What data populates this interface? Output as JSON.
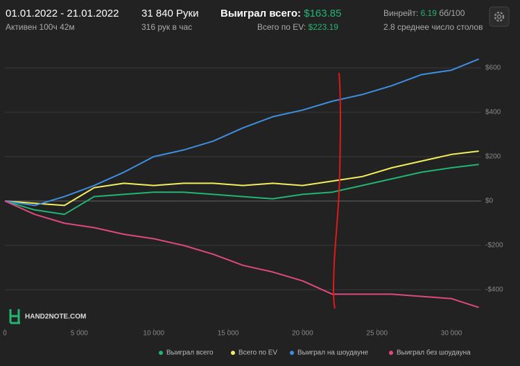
{
  "header": {
    "date_range": "01.01.2022 - 21.01.2022",
    "active": "Активен 100ч 42м",
    "hands": "31 840 Руки",
    "hands_per_hour": "316 рук в час",
    "won_label": "Выиграл всего:",
    "won_value": "$163.85",
    "ev_label": "Всего по EV:",
    "ev_value": "$223.19",
    "winrate_label": "Винрейт:",
    "winrate_value": "6.19",
    "winrate_unit": "бб/100",
    "avg_tables": "2.8 среднее число столов"
  },
  "logo": "HAND2NOTE.COM",
  "chart_data": {
    "type": "line",
    "x": [
      0,
      2000,
      4000,
      6000,
      8000,
      10000,
      12000,
      14000,
      16000,
      18000,
      20000,
      22000,
      24000,
      26000,
      28000,
      30000,
      31840
    ],
    "series": [
      {
        "name": "Выиграл всего",
        "color": "#22b573",
        "values": [
          0,
          -40,
          -60,
          20,
          30,
          40,
          40,
          30,
          20,
          10,
          30,
          40,
          70,
          100,
          130,
          150,
          165
        ]
      },
      {
        "name": "Всего по EV",
        "color": "#f3ee5e",
        "values": [
          0,
          -10,
          -20,
          60,
          80,
          70,
          80,
          80,
          70,
          80,
          70,
          90,
          110,
          150,
          180,
          210,
          225
        ]
      },
      {
        "name": "Выиграл на шоудауне",
        "color": "#3f8fe0",
        "values": [
          0,
          -20,
          20,
          70,
          130,
          200,
          230,
          270,
          330,
          380,
          410,
          450,
          480,
          520,
          570,
          590,
          640
        ]
      },
      {
        "name": "Выиграл без шоудауна",
        "color": "#df4a7d",
        "values": [
          0,
          -60,
          -100,
          -120,
          -150,
          -170,
          -200,
          -240,
          -290,
          -320,
          -360,
          -420,
          -420,
          -420,
          -430,
          -440,
          -480
        ]
      }
    ],
    "xlim": [
      0,
      32000
    ],
    "xticks": [
      0,
      {
        "value": 5000,
        "label": "5 000"
      },
      {
        "value": 10000,
        "label": "10 000"
      },
      {
        "value": 15000,
        "label": "15 000"
      },
      {
        "value": 20000,
        "label": "20 000"
      },
      {
        "value": 25000,
        "label": "25 000"
      },
      {
        "value": 30000,
        "label": "30 000"
      }
    ],
    "ylim": [
      -600,
      700
    ],
    "yticks": [
      {
        "value": -400,
        "label": "-$400"
      },
      {
        "value": -200,
        "label": "-$200"
      },
      {
        "value": 0,
        "label": "$0"
      },
      {
        "value": 200,
        "label": "$200"
      },
      {
        "value": 400,
        "label": "$400"
      },
      {
        "value": 600,
        "label": "$600"
      }
    ],
    "grid": true
  }
}
